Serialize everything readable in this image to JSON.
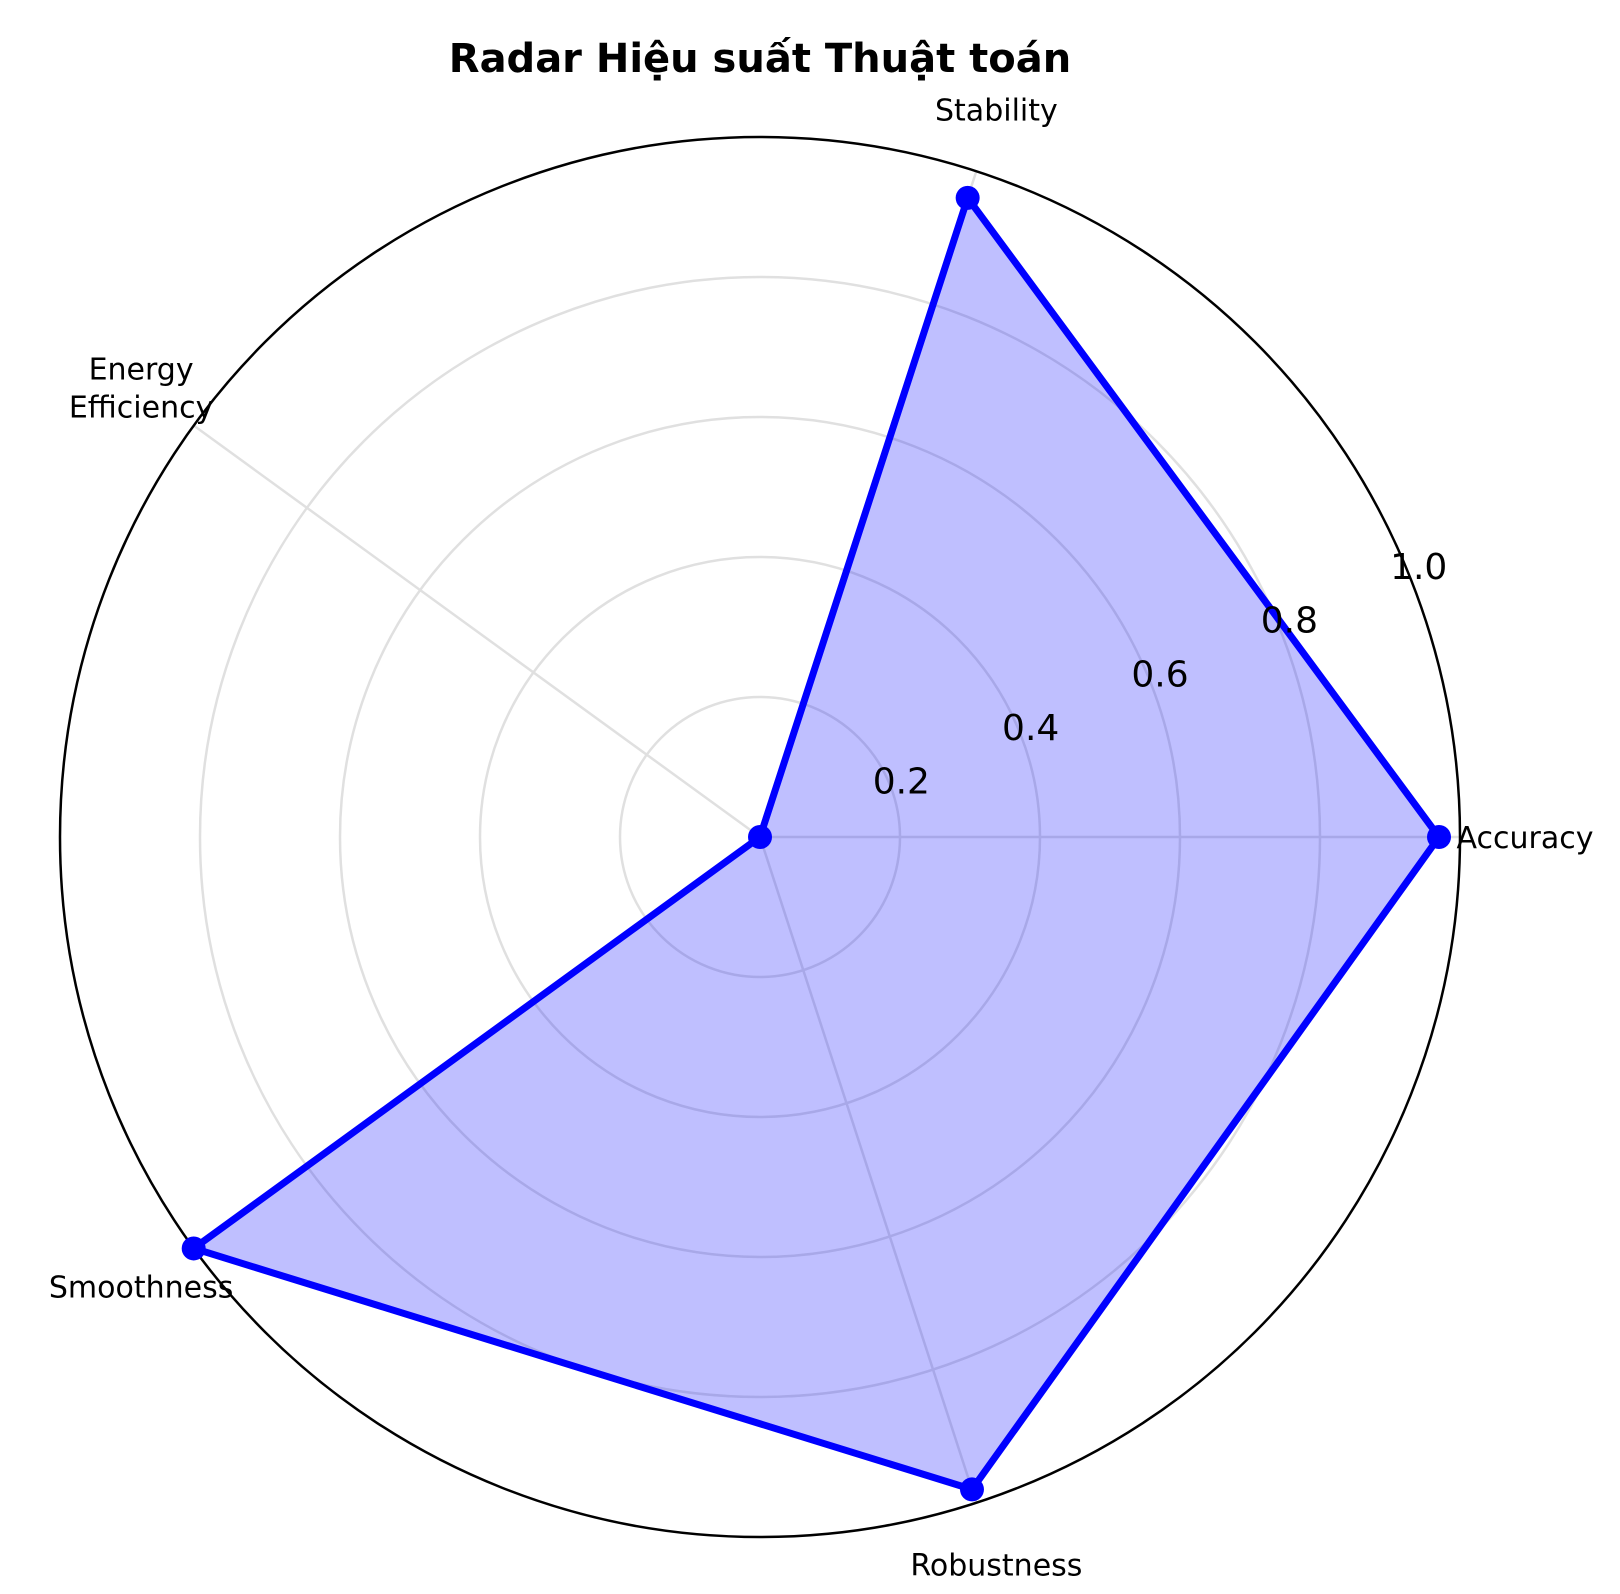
{
  "chart_data": {
    "type": "radar",
    "title": "Radar Hiệu suất Thuật toán",
    "axes": [
      {
        "label": "Accuracy",
        "lines": [
          "Accuracy"
        ]
      },
      {
        "label": "Stability",
        "lines": [
          "Stability"
        ]
      },
      {
        "label": "Energy Efficiency",
        "lines": [
          "Energy",
          "Efficiency"
        ]
      },
      {
        "label": "Smoothness",
        "lines": [
          "Smoothness"
        ]
      },
      {
        "label": "Robustness",
        "lines": [
          "Robustness"
        ]
      }
    ],
    "series": [
      {
        "values": [
          0.97,
          0.96,
          0.0,
          1.0,
          0.98
        ]
      }
    ],
    "rlim": [
      0,
      1.0
    ],
    "radial_ticks": [
      "0.2",
      "0.4",
      "0.6",
      "0.8",
      "1.0"
    ],
    "radial_tick_values": [
      0.2,
      0.4,
      0.6,
      0.8,
      1.0
    ],
    "grid": true,
    "colors": {
      "line": "#0000ff",
      "fill": "#0000ff",
      "grid": "#e0e0e0",
      "frame": "#000000"
    }
  }
}
